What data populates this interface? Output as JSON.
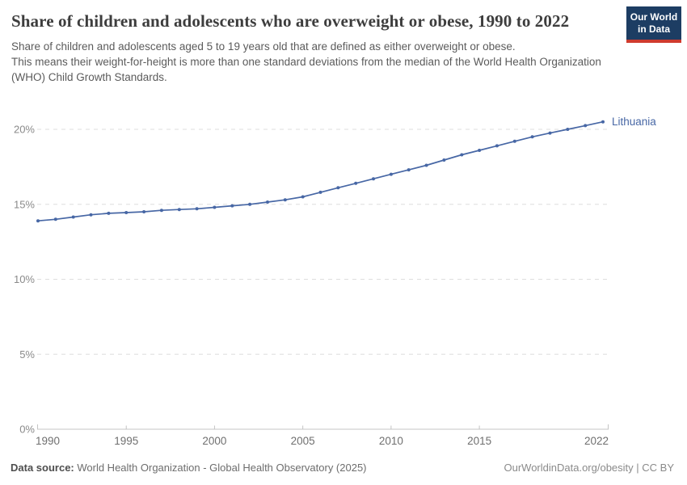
{
  "header": {
    "title": "Share of children and adolescents who are overweight or obese, 1990 to 2022",
    "subtitle_lines": [
      "Share of children and adolescents aged 5 to 19 years old that are defined as either overweight or obese.",
      "This means their weight-for-height is more than one standard deviations from the median of the World Health Organization (WHO) Child Growth Standards."
    ],
    "logo": {
      "line1": "Our World",
      "line2": "in Data"
    }
  },
  "chart_data": {
    "type": "line",
    "title": "Share of children and adolescents who are overweight or obese, 1990 to 2022",
    "xlabel": "",
    "ylabel": "",
    "x_ticks": [
      1990,
      1995,
      2000,
      2005,
      2010,
      2015,
      2022
    ],
    "y_ticks": [
      0,
      5,
      10,
      15,
      20
    ],
    "y_tick_suffix": "%",
    "xlim": [
      1990,
      2022
    ],
    "ylim": [
      0,
      20
    ],
    "grid": "horizontal-dashed",
    "legend": "end-of-line-label",
    "series": [
      {
        "name": "Lithuania",
        "x": [
          1990,
          1991,
          1992,
          1993,
          1994,
          1995,
          1996,
          1997,
          1998,
          1999,
          2000,
          2001,
          2002,
          2003,
          2004,
          2005,
          2006,
          2007,
          2008,
          2009,
          2010,
          2011,
          2012,
          2013,
          2014,
          2015,
          2016,
          2017,
          2018,
          2019,
          2020,
          2021,
          2022
        ],
        "values": [
          13.9,
          14.0,
          14.15,
          14.3,
          14.4,
          14.45,
          14.5,
          14.6,
          14.65,
          14.7,
          14.8,
          14.9,
          15.0,
          15.15,
          15.3,
          15.5,
          15.8,
          16.1,
          16.4,
          16.7,
          17.0,
          17.3,
          17.6,
          17.95,
          18.3,
          18.6,
          18.9,
          19.2,
          19.5,
          19.75,
          20.0,
          20.25,
          20.5
        ]
      }
    ]
  },
  "footer": {
    "source_label": "Data source:",
    "source_text": " World Health Organization - Global Health Observatory (2025)",
    "rights": "OurWorldinData.org/obesity | CC BY"
  },
  "colors": {
    "line": "#4767a5",
    "entity_label": "#4767a5",
    "gridline": "#dedede",
    "axis": "#c4c4c4",
    "y_tick_label": "#8a8a8a",
    "x_tick_label": "#6f6f6f",
    "logo_navy": "#1d3d63",
    "logo_red": "#cf3b2e"
  }
}
